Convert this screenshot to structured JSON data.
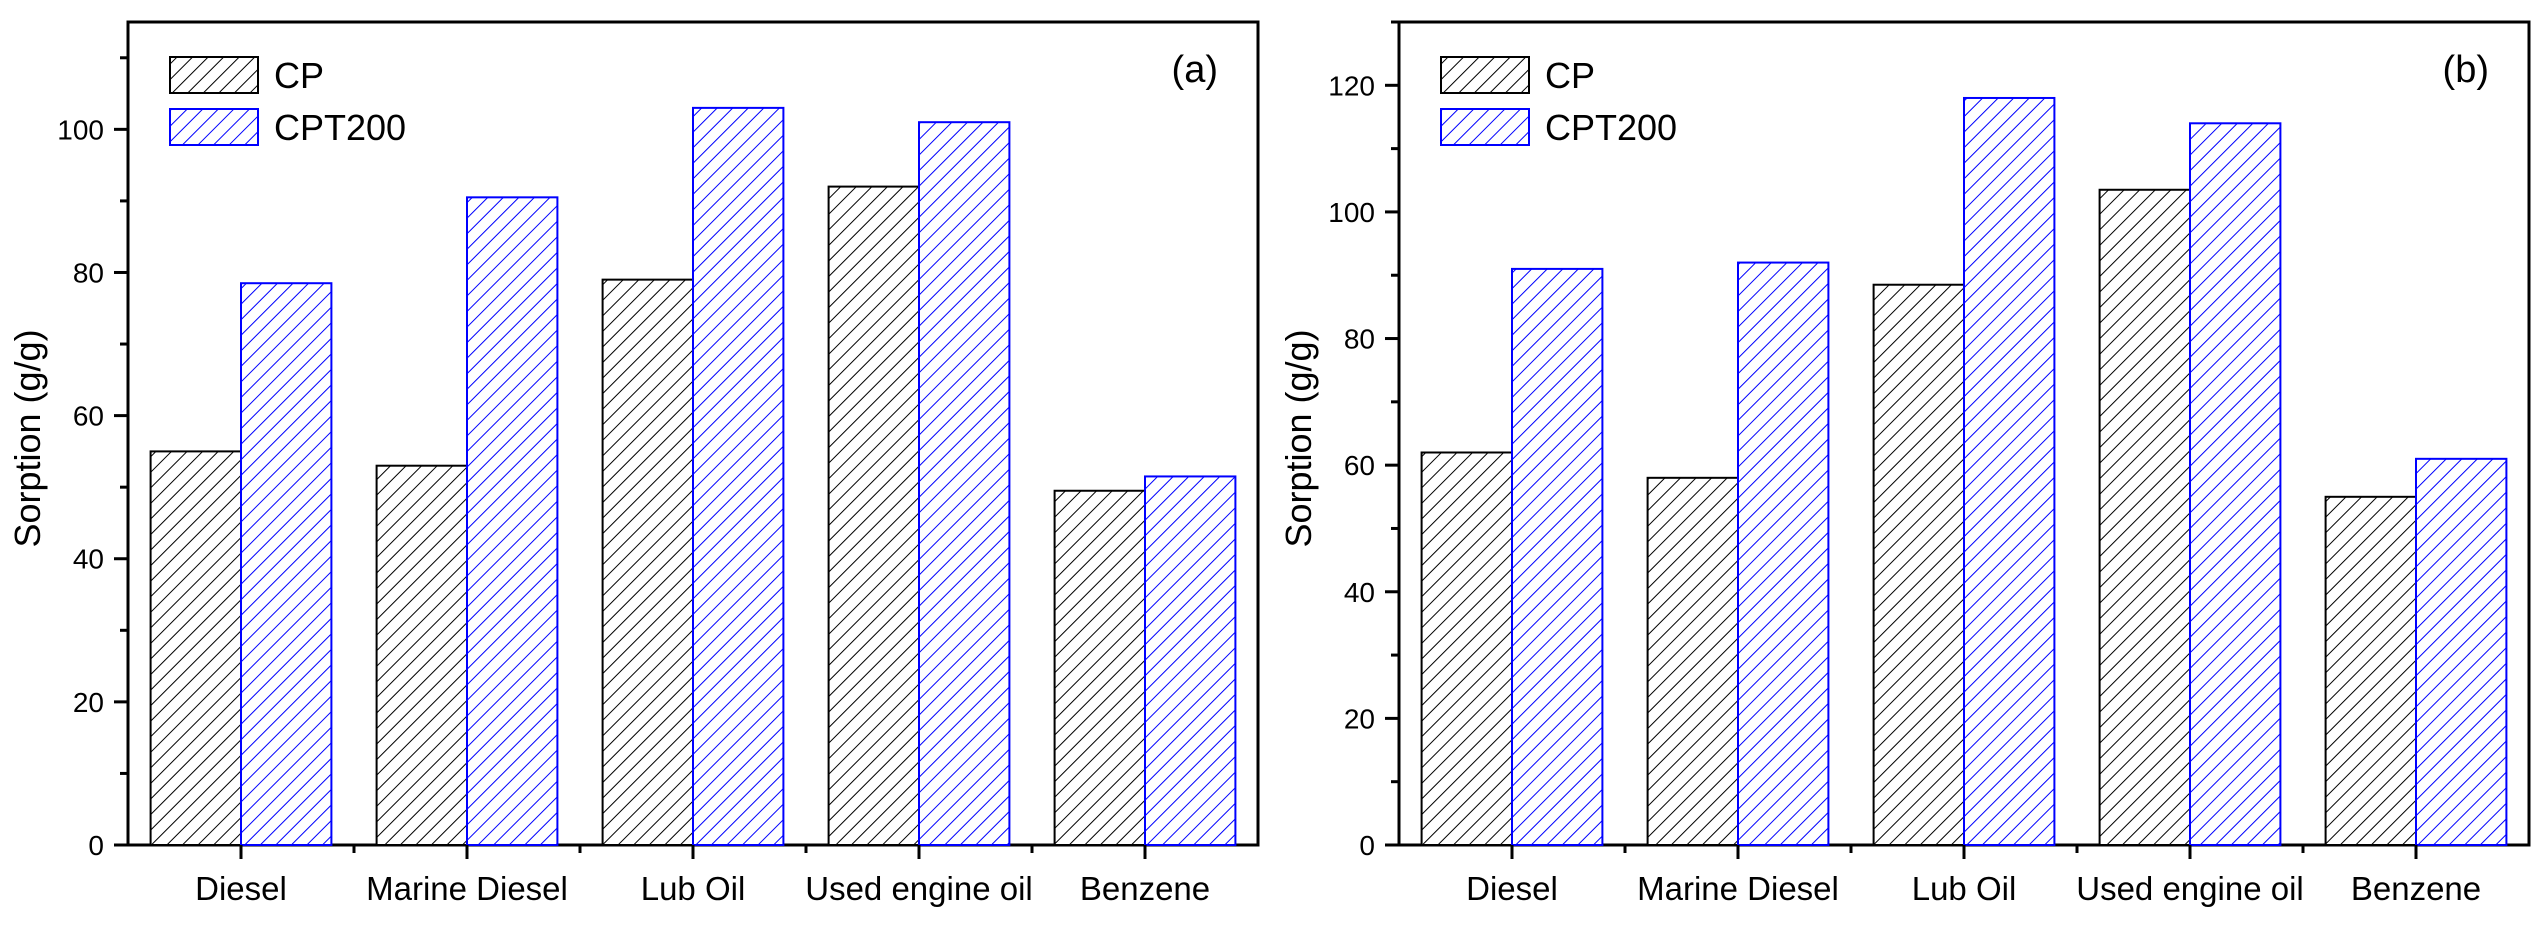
{
  "colors": {
    "cp": "#000000",
    "cpt200": "#0000ff"
  },
  "chart_data": [
    {
      "type": "bar",
      "panel_label": "(a)",
      "ylabel": "Sorption (g/g)",
      "xlabel": "",
      "ylim": [
        0,
        115
      ],
      "yticks": [
        0,
        20,
        40,
        60,
        80,
        100
      ],
      "categories": [
        "Diesel",
        "Marine Diesel",
        "Lub Oil",
        "Used engine oil",
        "Benzene"
      ],
      "series": [
        {
          "name": "CP",
          "values": [
            55,
            53,
            79,
            92,
            49.5
          ]
        },
        {
          "name": "CPT200",
          "values": [
            78.5,
            90.5,
            103,
            101,
            51.5
          ]
        }
      ],
      "legend_position": "top-left"
    },
    {
      "type": "bar",
      "panel_label": "(b)",
      "ylabel": "Sorption (g/g)",
      "xlabel": "",
      "ylim": [
        0,
        130
      ],
      "yticks": [
        0,
        20,
        40,
        60,
        80,
        100,
        120
      ],
      "categories": [
        "Diesel",
        "Marine Diesel",
        "Lub Oil",
        "Used engine oil",
        "Benzene"
      ],
      "series": [
        {
          "name": "CP",
          "values": [
            62,
            58,
            88.5,
            103.5,
            55
          ]
        },
        {
          "name": "CPT200",
          "values": [
            91,
            92,
            118,
            114,
            61
          ]
        }
      ],
      "legend_position": "top-left"
    }
  ]
}
